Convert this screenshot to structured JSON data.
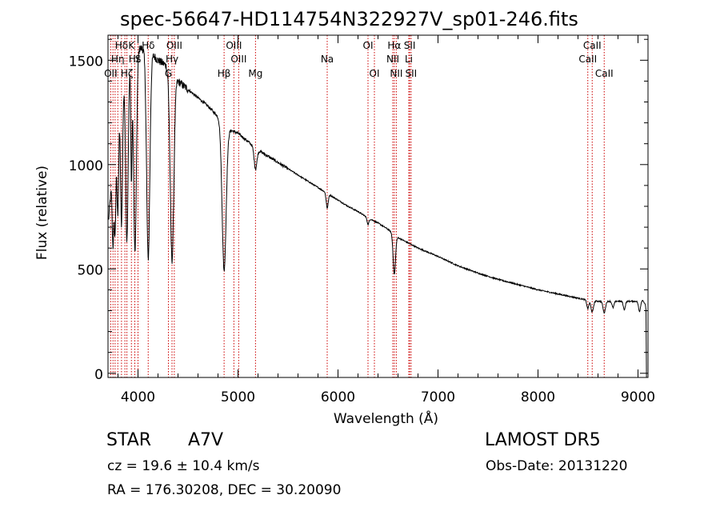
{
  "header": {
    "title": "spec-56647-HD114754N322927V_sp01-246.fits"
  },
  "footer": {
    "object_class": "STAR",
    "subclass": "A7V",
    "redshift": "cz = 19.6 ± 10.4 km/s",
    "coords": "RA = 176.30208, DEC =  30.20090",
    "survey": "LAMOST DR5",
    "obs_date": "Obs-Date: 20131220"
  },
  "chart_data": {
    "type": "line",
    "title": "spec-56647-HD114754N322927V_sp01-246.fits",
    "xlabel": "Wavelength (Å)",
    "ylabel": "Flux (relative)",
    "xlim": [
      3700,
      9100
    ],
    "ylim": [
      -20,
      1620
    ],
    "x_ticks": [
      4000,
      5000,
      6000,
      7000,
      8000,
      9000
    ],
    "x_tick_labels": [
      "4000",
      "5000",
      "6000",
      "7000",
      "8000",
      "9000"
    ],
    "y_ticks": [
      0,
      500,
      1000,
      1500
    ],
    "y_tick_labels": [
      "0",
      "500",
      "1000",
      "1500"
    ],
    "grid": false,
    "line_color": "#000000",
    "marker_color": "#cc0000",
    "continuum": {
      "x": [
        3700,
        3750,
        3800,
        3900,
        4000,
        4100,
        4200,
        4300,
        4400,
        4500,
        4600,
        4700,
        4800,
        4900,
        5000,
        5100,
        5200,
        5300,
        5400,
        5500,
        5600,
        5700,
        5800,
        5900,
        6000,
        6100,
        6200,
        6300,
        6400,
        6500,
        6600,
        6700,
        6800,
        7000,
        7200,
        7400,
        7600,
        7800,
        8000,
        8200,
        8400,
        8500,
        8600,
        8700,
        8800,
        8900,
        9000,
        9050,
        9080
      ],
      "y": [
        700,
        1000,
        1300,
        1460,
        1560,
        1550,
        1500,
        1470,
        1400,
        1360,
        1320,
        1280,
        1230,
        1170,
        1150,
        1110,
        1070,
        1040,
        1010,
        980,
        950,
        920,
        890,
        860,
        830,
        800,
        775,
        745,
        720,
        690,
        650,
        625,
        600,
        560,
        515,
        480,
        450,
        425,
        400,
        380,
        360,
        350,
        345,
        345,
        345,
        345,
        345,
        350,
        320
      ]
    },
    "absorption_lines": [
      {
        "x": 3750,
        "depth": 380,
        "width": 8
      },
      {
        "x": 3771,
        "depth": 450,
        "width": 8
      },
      {
        "x": 3798,
        "depth": 520,
        "width": 9
      },
      {
        "x": 3835,
        "depth": 650,
        "width": 10
      },
      {
        "x": 3889,
        "depth": 800,
        "width": 12
      },
      {
        "x": 3934,
        "depth": 550,
        "width": 6
      },
      {
        "x": 3970,
        "depth": 950,
        "width": 14
      },
      {
        "x": 4102,
        "depth": 1000,
        "width": 16
      },
      {
        "x": 4340,
        "depth": 900,
        "width": 18
      },
      {
        "x": 4861,
        "depth": 700,
        "width": 20
      },
      {
        "x": 5175,
        "depth": 100,
        "width": 14
      },
      {
        "x": 5892,
        "depth": 70,
        "width": 10
      },
      {
        "x": 6300,
        "depth": 30,
        "width": 10
      },
      {
        "x": 6563,
        "depth": 190,
        "width": 12
      },
      {
        "x": 8498,
        "depth": 40,
        "width": 10
      },
      {
        "x": 8542,
        "depth": 55,
        "width": 12
      },
      {
        "x": 8662,
        "depth": 55,
        "width": 12
      },
      {
        "x": 8750,
        "depth": 30,
        "width": 10
      },
      {
        "x": 8863,
        "depth": 40,
        "width": 10
      },
      {
        "x": 9015,
        "depth": 50,
        "width": 10
      }
    ],
    "line_markers": [
      {
        "x": 3727,
        "label": "OII",
        "row": 3
      },
      {
        "x": 3750,
        "label": "",
        "row": 0
      },
      {
        "x": 3771,
        "label": "",
        "row": 0
      },
      {
        "x": 3798,
        "label": "Hη",
        "row": 2
      },
      {
        "x": 3835,
        "label": "Hδ",
        "row": 1
      },
      {
        "x": 3869,
        "label": "",
        "row": 0
      },
      {
        "x": 3889,
        "label": "Hζ",
        "row": 3
      },
      {
        "x": 3934,
        "label": "K",
        "row": 1
      },
      {
        "x": 3968,
        "label": "Hε",
        "row": 2
      },
      {
        "x": 4000,
        "label": "S",
        "row": 2
      },
      {
        "x": 4102,
        "label": "Hδ",
        "row": 1
      },
      {
        "x": 4304,
        "label": "G",
        "row": 3
      },
      {
        "x": 4340,
        "label": "Hγ",
        "row": 2
      },
      {
        "x": 4363,
        "label": "OIII",
        "row": 1
      },
      {
        "x": 4861,
        "label": "Hβ",
        "row": 3
      },
      {
        "x": 4959,
        "label": "OIII",
        "row": 1
      },
      {
        "x": 5007,
        "label": "OIII",
        "row": 2
      },
      {
        "x": 5175,
        "label": "Mg",
        "row": 3
      },
      {
        "x": 5892,
        "label": "Na",
        "row": 2
      },
      {
        "x": 6300,
        "label": "OI",
        "row": 1
      },
      {
        "x": 6364,
        "label": "OI",
        "row": 3
      },
      {
        "x": 6548,
        "label": "NII",
        "row": 2
      },
      {
        "x": 6563,
        "label": "Hα",
        "row": 1
      },
      {
        "x": 6583,
        "label": "NII",
        "row": 3
      },
      {
        "x": 6708,
        "label": "Li",
        "row": 2
      },
      {
        "x": 6717,
        "label": "SII",
        "row": 1
      },
      {
        "x": 6731,
        "label": "SII",
        "row": 3
      },
      {
        "x": 8498,
        "label": "CaII",
        "row": 2
      },
      {
        "x": 8542,
        "label": "CaII",
        "row": 1
      },
      {
        "x": 8662,
        "label": "CaII",
        "row": 3
      }
    ]
  }
}
